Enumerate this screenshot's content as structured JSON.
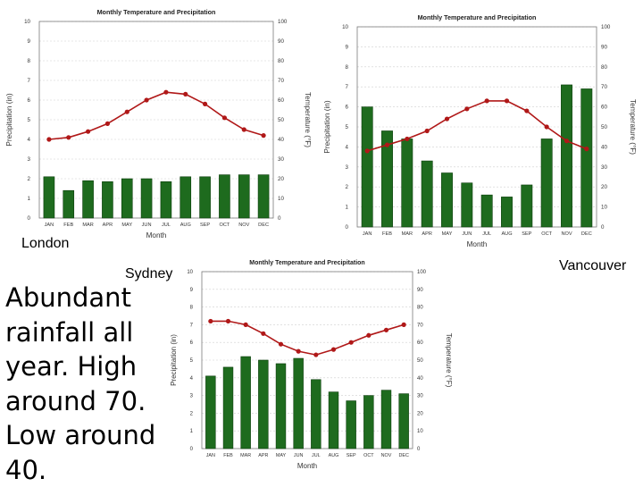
{
  "labels": {
    "london": "London",
    "sydney": "Sydney",
    "vancouver": "Vancouver"
  },
  "note": "Abundant rainfall all year. High around 70. Low around 40.",
  "colors": {
    "bar": "#1e6b1e",
    "bar_stroke": "#0b3d0b",
    "line": "#b01818",
    "grid": "#cfcfcf",
    "frame": "#7a7a7a"
  },
  "chart_data": [
    {
      "id": "london",
      "type": "bar",
      "title": "Monthly Temperature and Precipitation",
      "xlabel": "Month",
      "ylabel": "Precipitation (in)",
      "y2label": "Temperature (°F)",
      "categories": [
        "JAN",
        "FEB",
        "MAR",
        "APR",
        "MAY",
        "JUN",
        "JUL",
        "AUG",
        "SEP",
        "OCT",
        "NOV",
        "DEC"
      ],
      "ylim": [
        0,
        10
      ],
      "y2lim": [
        0,
        100
      ],
      "yticks": [
        "0",
        "1",
        "2",
        "3",
        "4",
        "5",
        "6",
        "7",
        "8",
        "9",
        "10"
      ],
      "y2ticks": [
        "0",
        "10",
        "20",
        "30",
        "40",
        "50",
        "60",
        "70",
        "80",
        "90",
        "100"
      ],
      "series": [
        {
          "name": "Precipitation",
          "axis": "left",
          "kind": "bar",
          "values": [
            2.1,
            1.4,
            1.9,
            1.85,
            2.0,
            2.0,
            1.85,
            2.1,
            2.1,
            2.2,
            2.2,
            2.2
          ]
        },
        {
          "name": "Temperature",
          "axis": "right",
          "kind": "line",
          "values": [
            40,
            41,
            44,
            48,
            54,
            60,
            64,
            63,
            58,
            51,
            45,
            42
          ]
        }
      ]
    },
    {
      "id": "vancouver",
      "type": "bar",
      "title": "Monthly Temperature and Precipitation",
      "xlabel": "Month",
      "ylabel": "Precipitation (in)",
      "y2label": "Temperature (°F)",
      "categories": [
        "JAN",
        "FEB",
        "MAR",
        "APR",
        "MAY",
        "JUN",
        "JUL",
        "AUG",
        "SEP",
        "OCT",
        "NOV",
        "DEC"
      ],
      "ylim": [
        0,
        10
      ],
      "y2lim": [
        0,
        100
      ],
      "yticks": [
        "0",
        "1",
        "2",
        "3",
        "4",
        "5",
        "6",
        "7",
        "8",
        "9",
        "10"
      ],
      "y2ticks": [
        "0",
        "10",
        "20",
        "30",
        "40",
        "50",
        "60",
        "70",
        "80",
        "90",
        "100"
      ],
      "series": [
        {
          "name": "Precipitation",
          "axis": "left",
          "kind": "bar",
          "values": [
            6.0,
            4.8,
            4.4,
            3.3,
            2.7,
            2.2,
            1.6,
            1.5,
            2.1,
            4.4,
            7.1,
            6.9
          ]
        },
        {
          "name": "Temperature",
          "axis": "right",
          "kind": "line",
          "values": [
            38,
            41,
            44,
            48,
            54,
            59,
            63,
            63,
            58,
            50,
            43,
            39
          ]
        }
      ]
    },
    {
      "id": "sydney",
      "type": "bar",
      "title": "Monthly Temperature and Precipitation",
      "xlabel": "Month",
      "ylabel": "Precipitation (in)",
      "y2label": "Temperature (°F)",
      "categories": [
        "JAN",
        "FEB",
        "MAR",
        "APR",
        "MAY",
        "JUN",
        "JUL",
        "AUG",
        "SEP",
        "OCT",
        "NOV",
        "DEC"
      ],
      "ylim": [
        0,
        10
      ],
      "y2lim": [
        0,
        100
      ],
      "yticks": [
        "0",
        "1",
        "2",
        "3",
        "4",
        "5",
        "6",
        "7",
        "8",
        "9",
        "10"
      ],
      "y2ticks": [
        "0",
        "10",
        "20",
        "30",
        "40",
        "50",
        "60",
        "70",
        "80",
        "90",
        "100"
      ],
      "series": [
        {
          "name": "Precipitation",
          "axis": "left",
          "kind": "bar",
          "values": [
            4.1,
            4.6,
            5.2,
            5.0,
            4.8,
            5.1,
            3.9,
            3.2,
            2.7,
            3.0,
            3.3,
            3.1
          ]
        },
        {
          "name": "Temperature",
          "axis": "right",
          "kind": "line",
          "values": [
            72,
            72,
            70,
            65,
            59,
            55,
            53,
            56,
            60,
            64,
            67,
            70
          ]
        }
      ]
    }
  ]
}
